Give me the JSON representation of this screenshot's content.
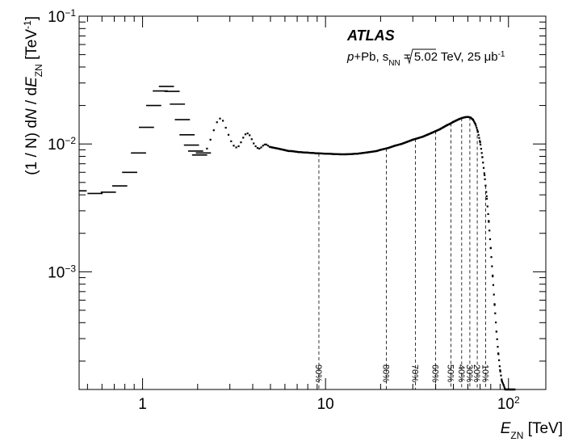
{
  "chart_data": {
    "type": "scatter",
    "xscale": "log",
    "yscale": "log",
    "xlim": [
      0.45,
      160
    ],
    "ylim": [
      0.00012,
      0.1
    ],
    "x_ticks": [
      {
        "value": 1,
        "label": "1"
      },
      {
        "value": 10,
        "label": "10"
      },
      {
        "value": 100,
        "label": "10",
        "sup": "2"
      }
    ],
    "y_ticks": [
      {
        "value": 0.1,
        "label": "10",
        "sup": "−1"
      },
      {
        "value": 0.01,
        "label": "10",
        "sup": "−2"
      },
      {
        "value": 0.001,
        "label": "10",
        "sup": "−3"
      }
    ],
    "xlabel": {
      "main": "E",
      "sub": "ZN",
      "unit": " [TeV]"
    },
    "ylabel": {
      "p1": "(1 / N) d",
      "p2": "N",
      "p3": " / d",
      "p4": "E",
      "sub": "ZN",
      "p5": " [TeV",
      "sup": "-1",
      "p6": "]"
    },
    "annotation": {
      "title": "ATLAS",
      "line": {
        "p1": "p",
        "p2": "+Pb, ",
        "root": "s",
        "root_sub": "NN",
        "p3": " = 5.02 TeV, 25 μb",
        "sup": "-1"
      }
    },
    "centrality_lines": [
      {
        "x": 9.2,
        "label": "90%"
      },
      {
        "x": 21.5,
        "label": "80%"
      },
      {
        "x": 31.0,
        "label": "70%"
      },
      {
        "x": 40.0,
        "label": "60%"
      },
      {
        "x": 48.5,
        "label": "50%"
      },
      {
        "x": 55.5,
        "label": "40%"
      },
      {
        "x": 61.5,
        "label": "30%"
      },
      {
        "x": 67.5,
        "label": "20%"
      },
      {
        "x": 75.0,
        "label": "10%"
      }
    ],
    "series": [
      {
        "x": [
          0.45,
          0.55,
          0.65,
          0.75,
          0.85,
          0.95,
          1.05,
          1.15,
          1.25,
          1.35,
          1.45,
          1.55,
          1.65,
          1.75,
          1.85,
          1.95,
          2.05,
          2.15,
          2.25,
          2.35,
          2.45,
          2.55,
          2.65,
          2.75,
          2.85,
          2.95,
          3.05,
          3.15,
          3.25,
          3.35,
          3.45,
          3.55,
          3.65,
          3.75,
          3.85,
          3.95,
          4.05,
          4.15,
          4.25,
          4.35,
          4.45,
          4.55,
          4.65,
          4.75,
          4.85,
          4.95,
          5.1,
          5.3,
          5.5,
          5.7,
          5.9,
          6.1,
          6.3,
          6.5,
          6.7,
          6.9,
          7.1,
          7.5,
          8.0,
          8.5,
          9.0,
          10,
          11,
          12,
          13,
          14,
          15,
          16,
          17,
          18,
          19,
          20,
          22,
          24,
          26,
          28,
          30,
          32,
          34,
          36,
          38,
          40,
          42,
          44,
          46,
          48,
          50,
          52,
          54,
          56,
          58,
          60,
          62,
          64,
          66,
          68,
          70,
          72,
          74,
          76,
          78,
          80,
          82,
          84,
          86,
          88,
          90,
          92,
          94,
          96,
          98,
          100,
          102,
          104,
          106,
          108
        ],
        "y": [
          0.0043,
          0.0041,
          0.0042,
          0.0047,
          0.006,
          0.0085,
          0.0135,
          0.02,
          0.026,
          0.0282,
          0.0258,
          0.0205,
          0.0155,
          0.0118,
          0.0098,
          0.0088,
          0.0082,
          0.0085,
          0.0092,
          0.0108,
          0.0128,
          0.0148,
          0.0158,
          0.0152,
          0.0134,
          0.0118,
          0.0105,
          0.0097,
          0.0094,
          0.0096,
          0.0103,
          0.0112,
          0.0119,
          0.0121,
          0.0117,
          0.0109,
          0.0101,
          0.0096,
          0.0093,
          0.0092,
          0.0094,
          0.0097,
          0.0099,
          0.0099,
          0.0097,
          0.0095,
          0.0094,
          0.0093,
          0.0092,
          0.0091,
          0.009,
          0.0089,
          0.0088,
          0.0088,
          0.00875,
          0.0087,
          0.00865,
          0.0086,
          0.00855,
          0.0085,
          0.00845,
          0.0084,
          0.00835,
          0.0083,
          0.0083,
          0.00835,
          0.0084,
          0.0085,
          0.0086,
          0.0087,
          0.0088,
          0.009,
          0.0093,
          0.0097,
          0.01,
          0.0104,
          0.0108,
          0.0111,
          0.0114,
          0.0118,
          0.0122,
          0.0126,
          0.013,
          0.0135,
          0.014,
          0.0144,
          0.0149,
          0.0153,
          0.0157,
          0.016,
          0.0162,
          0.0163,
          0.0161,
          0.0155,
          0.0143,
          0.0125,
          0.0103,
          0.0079,
          0.0057,
          0.0039,
          0.0025,
          0.00153,
          0.00092,
          0.00055,
          0.00034,
          0.00023,
          0.00017,
          0.00014,
          0.00013,
          0.00012,
          0.00012,
          0.00012,
          0.00012,
          0.00012,
          0.00012,
          0.00012
        ]
      }
    ]
  }
}
